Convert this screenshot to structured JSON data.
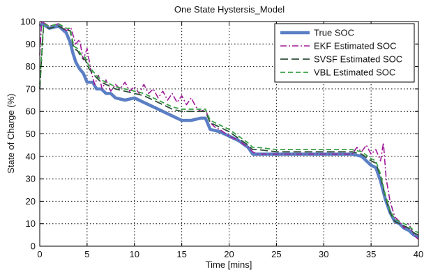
{
  "chart_data": {
    "type": "line",
    "title": "One State Hystersis_Model",
    "xlabel": "Time [mins]",
    "ylabel": "State of Charge (%)",
    "xlim": [
      0,
      40
    ],
    "ylim": [
      0,
      100
    ],
    "xticks": [
      0,
      5,
      10,
      15,
      20,
      25,
      30,
      35,
      40
    ],
    "yticks": [
      0,
      10,
      20,
      30,
      40,
      50,
      60,
      70,
      80,
      90,
      100
    ],
    "grid": true,
    "legend_position": "top-right",
    "series": [
      {
        "name": "True SOC",
        "color": "#5b7fc4",
        "style": "solid-thick",
        "x": [
          0,
          0.3,
          1,
          2,
          2.8,
          3.2,
          3.5,
          3.8,
          4.2,
          4.6,
          5.0,
          5.3,
          5.6,
          6.0,
          6.5,
          7.0,
          7.5,
          8.0,
          9.0,
          10.0,
          11.0,
          12.0,
          13.0,
          14.0,
          15.0,
          16.0,
          17.0,
          17.5,
          18.0,
          19.0,
          20.0,
          21.0,
          22.0,
          22.5,
          23.0,
          25.0,
          28.0,
          30.0,
          33.0,
          34.0,
          35.0,
          35.5,
          36.0,
          36.5,
          37.0,
          37.5,
          38.0,
          38.5,
          39.0,
          39.5,
          40.0
        ],
        "y": [
          98,
          99,
          97,
          98,
          95,
          91,
          86,
          82,
          79,
          77,
          73,
          73,
          73,
          70,
          70,
          68,
          68,
          66,
          65,
          66,
          64,
          62,
          60,
          58,
          56,
          56,
          57,
          57,
          52,
          51,
          49,
          47,
          44,
          41,
          41,
          41,
          41,
          41,
          41,
          40,
          36,
          35,
          29,
          21,
          15,
          11,
          10,
          8,
          7,
          5,
          4
        ]
      },
      {
        "name": "EKF Estimated SOC",
        "color": "#a0189a",
        "style": "dash-dot",
        "x": [
          0,
          0.2,
          1,
          2,
          2.8,
          3.3,
          3.8,
          4.2,
          4.6,
          5.0,
          5.4,
          5.8,
          6.2,
          6.6,
          7.0,
          7.5,
          8.0,
          8.5,
          9.0,
          9.5,
          10.0,
          10.5,
          11.0,
          11.5,
          12.0,
          12.5,
          13.0,
          13.5,
          14.0,
          14.5,
          15.0,
          15.5,
          16.0,
          16.5,
          17.0,
          17.5,
          18.0,
          18.5,
          19.0,
          20.0,
          21.0,
          22.0,
          22.5,
          23.0,
          25.0,
          28.0,
          30.0,
          33.0,
          33.5,
          34.0,
          34.5,
          35.0,
          35.5,
          36.0,
          36.3,
          36.6,
          37.0,
          37.5,
          38.0,
          38.5,
          39.0,
          39.5,
          40.0
        ],
        "y": [
          85,
          100,
          98,
          99,
          96,
          97,
          90,
          92,
          83,
          88,
          78,
          72,
          76,
          70,
          74,
          69,
          72,
          70,
          73,
          69,
          71,
          68,
          72,
          68,
          70,
          66,
          69,
          65,
          68,
          64,
          67,
          63,
          66,
          62,
          60,
          61,
          55,
          53,
          52,
          49,
          47,
          44,
          42,
          41,
          41,
          41,
          41,
          41,
          44,
          42,
          45,
          41,
          43,
          38,
          46,
          30,
          20,
          13,
          11,
          8,
          10,
          5,
          3
        ]
      },
      {
        "name": "SVSF Estimated SOC",
        "color": "#2e4f38",
        "style": "long-dash",
        "x": [
          0,
          0.4,
          1,
          2,
          2.8,
          3.2,
          3.6,
          4.0,
          4.4,
          4.8,
          5.2,
          5.6,
          6.0,
          6.5,
          7.0,
          8.0,
          9.0,
          10.0,
          11.0,
          12.0,
          13.0,
          14.0,
          15.0,
          16.0,
          17.0,
          17.5,
          18.0,
          19.0,
          20.0,
          21.0,
          22.0,
          22.5,
          23.0,
          25.0,
          28.0,
          30.0,
          33.0,
          34.0,
          35.0,
          35.5,
          36.0,
          36.5,
          37.0,
          37.5,
          38.0,
          38.5,
          39.0,
          39.5,
          40.0
        ],
        "y": [
          70,
          98,
          97,
          98,
          96,
          96,
          88,
          87,
          84,
          83,
          79,
          77,
          75,
          73,
          72,
          70,
          69,
          68,
          67,
          65,
          63,
          61,
          60,
          60,
          60,
          60,
          55,
          53,
          51,
          48,
          45,
          43,
          43,
          42,
          42,
          42,
          42,
          41,
          38,
          37,
          31,
          22,
          15,
          11,
          10,
          9,
          8,
          6,
          5
        ]
      },
      {
        "name": "VBL Estimated SOC",
        "color": "#3aa045",
        "style": "dashed",
        "x": [
          0,
          0.4,
          1,
          2,
          2.8,
          3.2,
          3.6,
          4.0,
          4.4,
          4.8,
          5.2,
          5.6,
          6.0,
          6.5,
          7.0,
          8.0,
          9.0,
          10.0,
          11.0,
          12.0,
          13.0,
          14.0,
          15.0,
          16.0,
          17.0,
          17.5,
          18.0,
          19.0,
          20.0,
          21.0,
          22.0,
          22.5,
          23.0,
          25.0,
          28.0,
          30.0,
          33.0,
          34.0,
          35.0,
          35.5,
          36.0,
          36.5,
          37.0,
          37.5,
          38.0,
          38.5,
          39.0,
          39.5,
          40.0
        ],
        "y": [
          72,
          99,
          98,
          99,
          97,
          97,
          89,
          88,
          85,
          84,
          80,
          78,
          76,
          74,
          73,
          71,
          70,
          69,
          68,
          66,
          64,
          62,
          61,
          61,
          61,
          61,
          56,
          54,
          52,
          49,
          46,
          44,
          44,
          43,
          43,
          43,
          43,
          42,
          39,
          38,
          32,
          23,
          16,
          12,
          11,
          10,
          9,
          7,
          6
        ]
      }
    ]
  }
}
